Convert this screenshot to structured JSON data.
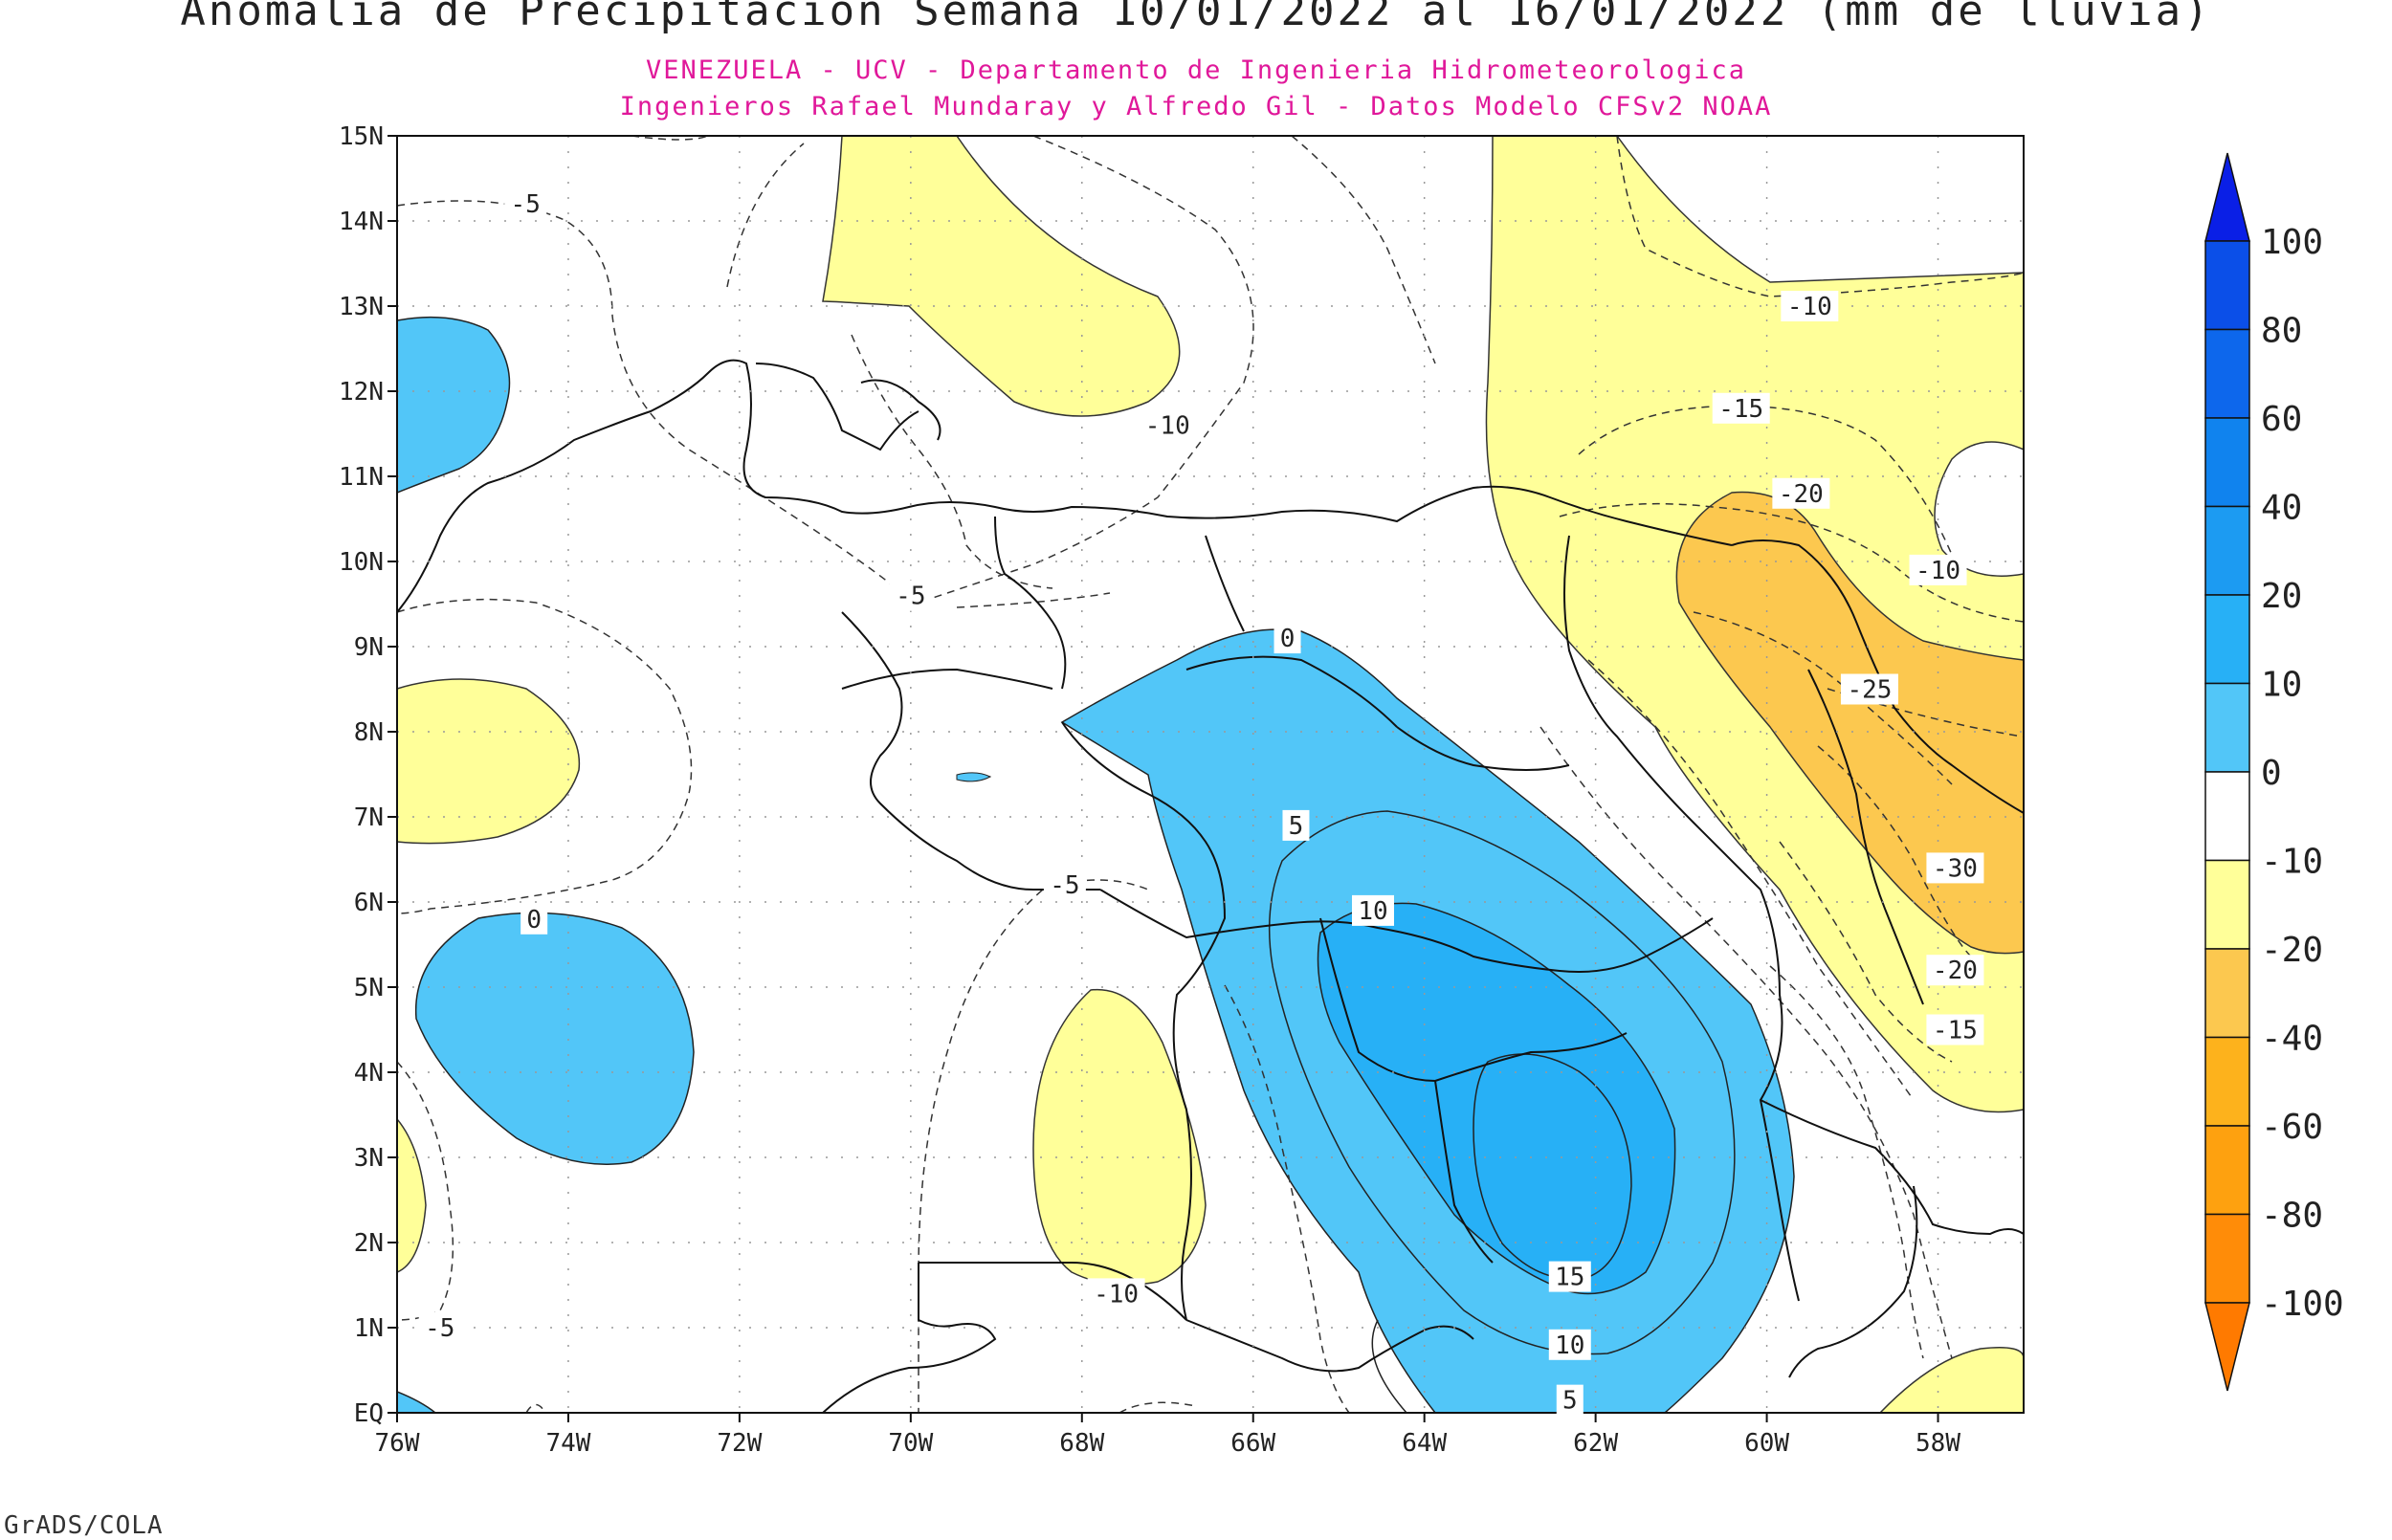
{
  "title": "Anomalia de Precipitacion Semana 10/01/2022 al 16/01/2022 (mm de lluvia)",
  "subtitle_1": "VENEZUELA - UCV - Departamento de Ingenieria Hidrometeorologica",
  "subtitle_2": "Ingenieros Rafael Mundaray y Alfredo Gil - Datos Modelo CFSv2 NOAA",
  "footer": "GrADS/COLA",
  "map": {
    "lon_range": [
      -76,
      -57
    ],
    "lat_range": [
      0,
      15
    ],
    "x_ticks": [
      "76W",
      "74W",
      "72W",
      "70W",
      "68W",
      "66W",
      "64W",
      "62W",
      "60W",
      "58W"
    ],
    "y_ticks": [
      "EQ",
      "1N",
      "2N",
      "3N",
      "4N",
      "5N",
      "6N",
      "7N",
      "8N",
      "9N",
      "10N",
      "11N",
      "12N",
      "13N",
      "14N",
      "15N"
    ],
    "contour_labels": [
      "-5",
      "-10",
      "-10",
      "-15",
      "-20",
      "-10",
      "-25",
      "-30",
      "-20",
      "-15",
      "0",
      "5",
      "10",
      "15",
      "10",
      "5",
      "0",
      "-5",
      "-10",
      "-5",
      "-5"
    ]
  },
  "colorbar": {
    "labels": [
      "100",
      "80",
      "60",
      "40",
      "20",
      "10",
      "0",
      "-10",
      "-20",
      "-40",
      "-60",
      "-80",
      "-100"
    ],
    "colors": [
      "#0a1fe6",
      "#0b4fe8",
      "#0d67ec",
      "#1083ee",
      "#1c9bf2",
      "#27b0f6",
      "#52c6f8",
      "#ffffff",
      "#ffff99",
      "#fcc84f",
      "#fdb21c",
      "#fea10f",
      "#ff8c08",
      "#ff7a00"
    ]
  }
}
